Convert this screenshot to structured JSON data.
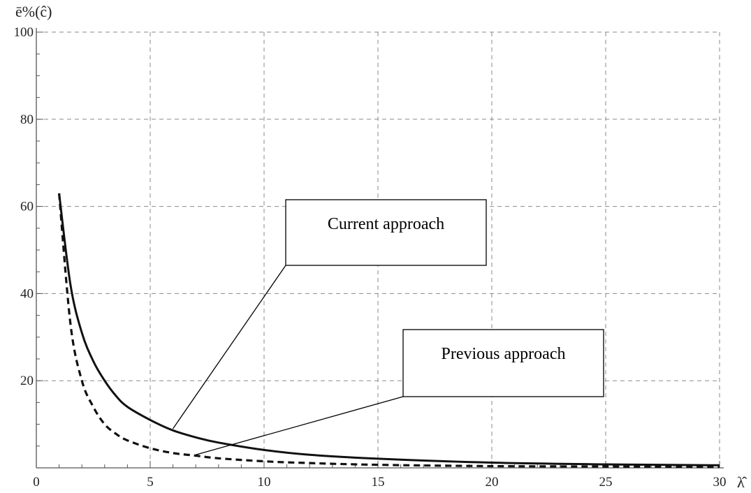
{
  "chart_data": {
    "type": "line",
    "xlabel": "λ̂",
    "ylabel": "ē%(ĉ)",
    "xlim": [
      0,
      30
    ],
    "ylim": [
      0,
      100
    ],
    "xticks": [
      0,
      5,
      10,
      15,
      20,
      25,
      30
    ],
    "yticks": [
      20,
      40,
      60,
      80,
      100
    ],
    "grid": true,
    "series": [
      {
        "style": "solid",
        "x": [
          1,
          1.5,
          2,
          2.5,
          3,
          3.5,
          4,
          5,
          6,
          7,
          8,
          10,
          12,
          15,
          20,
          25,
          30
        ],
        "y": [
          63,
          42,
          31,
          24.5,
          20,
          16.5,
          14,
          11,
          8.6,
          7,
          5.8,
          4.1,
          3,
          2.1,
          1.2,
          0.8,
          0.6
        ]
      },
      {
        "style": "dashed",
        "x": [
          1,
          1.5,
          2,
          2.5,
          3,
          3.5,
          4,
          5,
          6,
          7,
          8,
          10,
          12,
          15,
          20,
          25,
          30
        ],
        "y": [
          63,
          33,
          20,
          14,
          10,
          7.8,
          6.3,
          4.5,
          3.4,
          2.8,
          2.2,
          1.5,
          1.1,
          0.7,
          0.4,
          0.3,
          0.2
        ]
      }
    ],
    "annotations": [
      {
        "text": "Current approach",
        "target_x": 6,
        "target_y": 9
      },
      {
        "text": "Previous approach",
        "target_x": 7,
        "target_y": 3
      }
    ]
  }
}
